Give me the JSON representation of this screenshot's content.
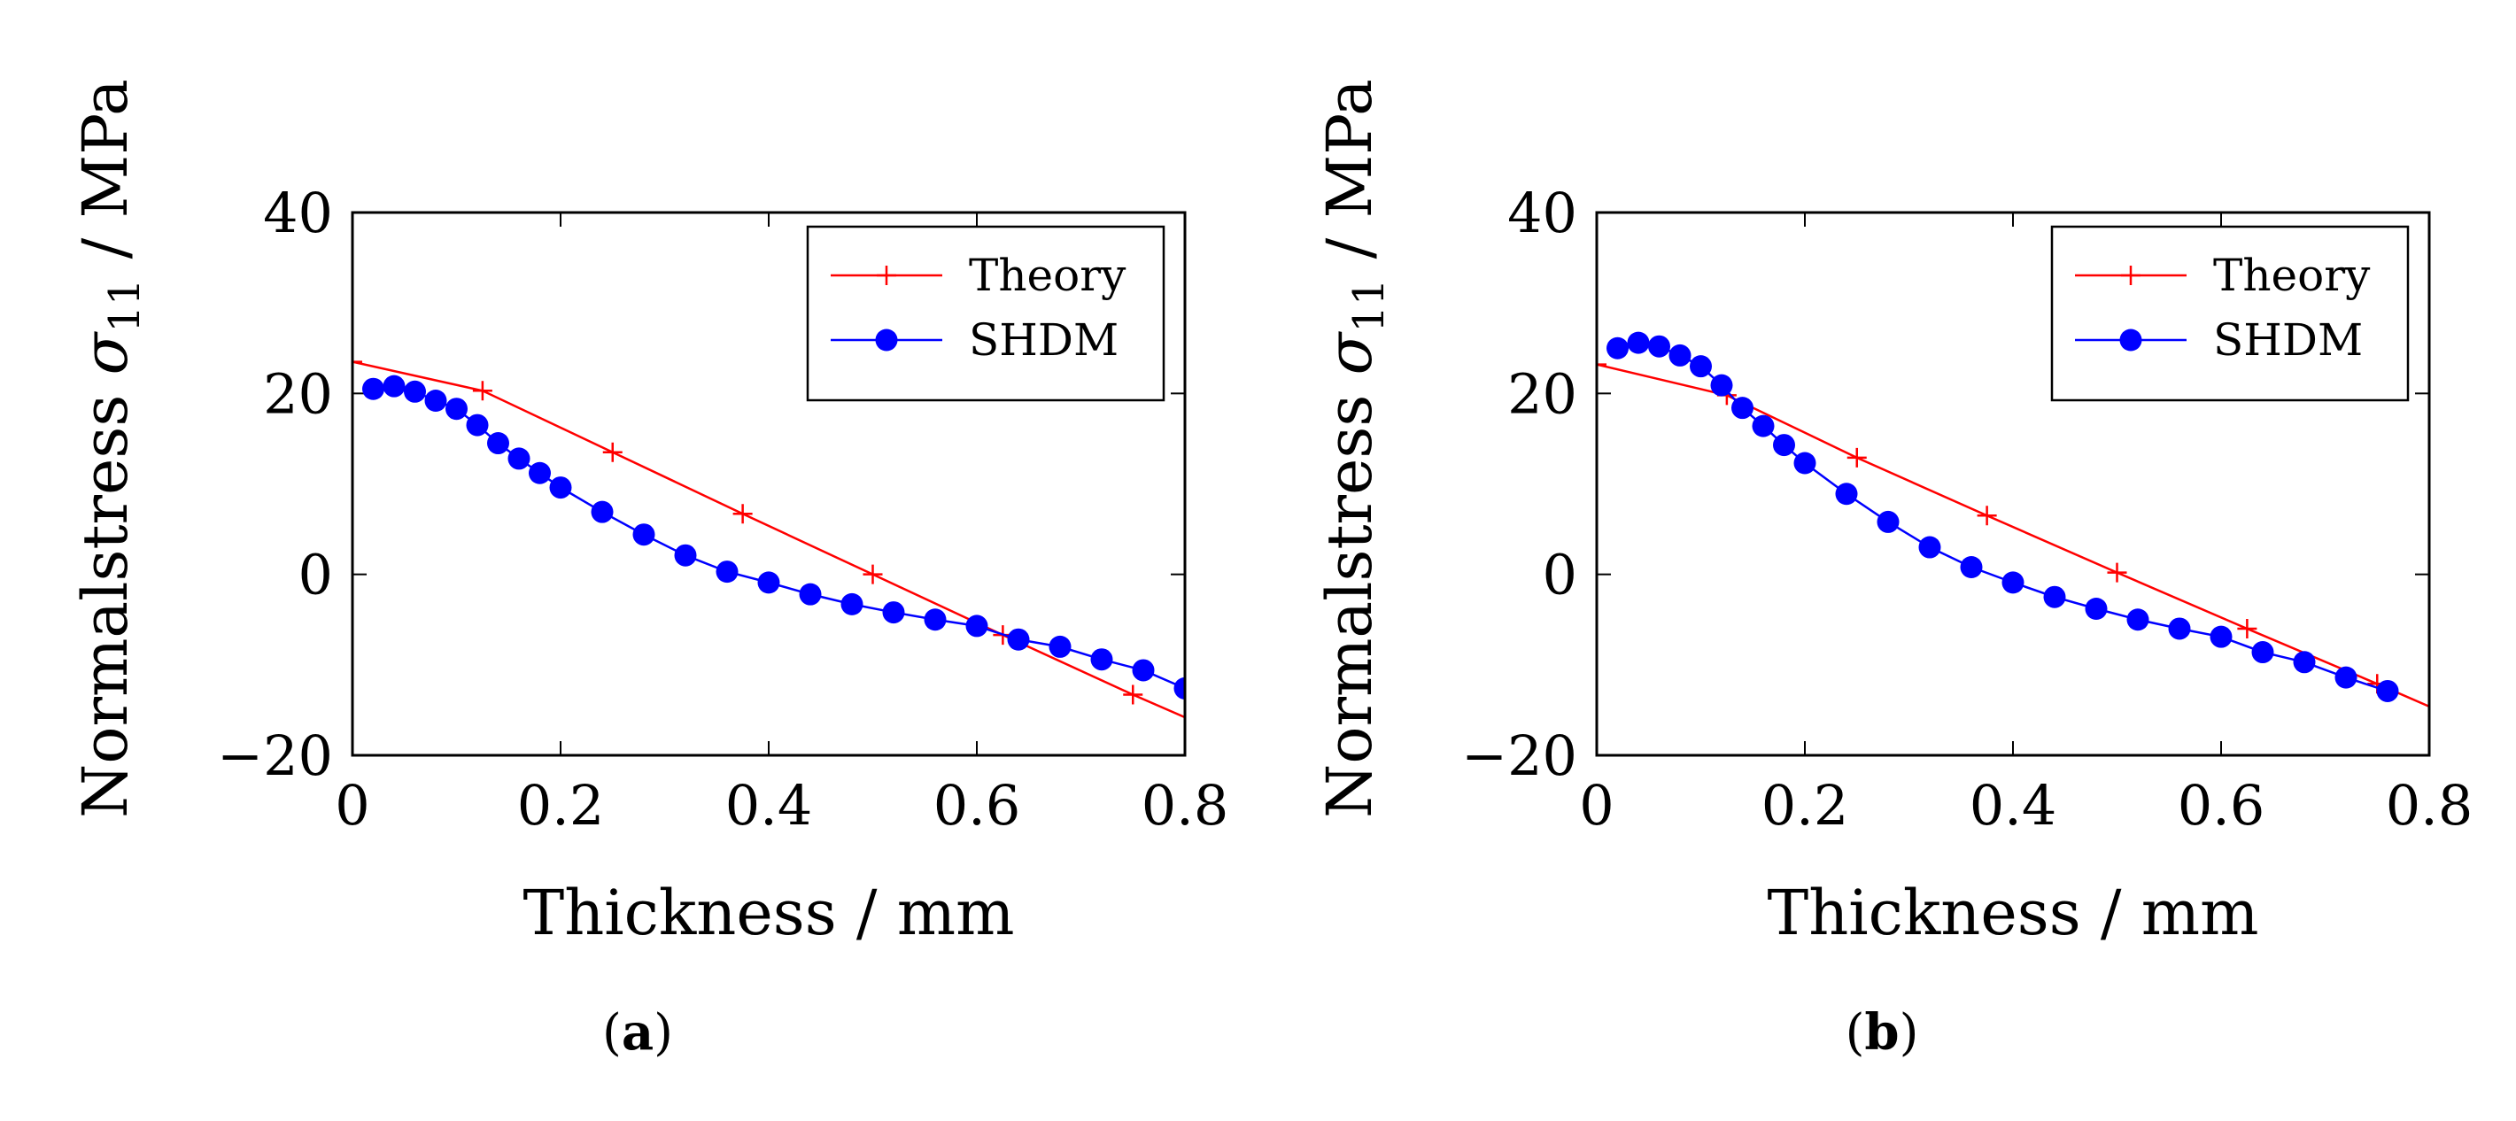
{
  "chart_data": [
    {
      "type": "line",
      "caption": "a",
      "xlabel": "Thickness / mm",
      "ylabel_prefix": "Normalstress",
      "ylabel_symbol": "σ",
      "ylabel_subscript": "11",
      "ylabel_unit": "/ MPa",
      "xlim": [
        0,
        0.8
      ],
      "ylim": [
        -20,
        40
      ],
      "xticks": [
        0,
        0.2,
        0.4,
        0.6,
        0.8
      ],
      "yticks": [
        -20,
        0,
        20,
        40
      ],
      "xtick_labels": [
        "0",
        "0.2",
        "0.4",
        "0.6",
        "0.8"
      ],
      "ytick_labels": [
        "−20",
        "0",
        "20",
        "40"
      ],
      "legend_position": "top-right",
      "series": [
        {
          "name": "Theory",
          "color": "#ff0000",
          "marker": "plus",
          "x": [
            0,
            0.125,
            0.25,
            0.375,
            0.5,
            0.625,
            0.75,
            0.8
          ],
          "y": [
            23.5,
            20.3,
            13.5,
            6.7,
            0,
            -6.7,
            -13.3,
            -15.8
          ],
          "marker_x": [
            0,
            0.125,
            0.25,
            0.375,
            0.5,
            0.625,
            0.75
          ]
        },
        {
          "name": "SHDM",
          "color": "#0000ff",
          "marker": "circle",
          "x": [
            0.02,
            0.04,
            0.06,
            0.08,
            0.1,
            0.12,
            0.14,
            0.16,
            0.18,
            0.2,
            0.24,
            0.28,
            0.32,
            0.36,
            0.4,
            0.44,
            0.48,
            0.52,
            0.56,
            0.6,
            0.64,
            0.68,
            0.72,
            0.76,
            0.8
          ],
          "y": [
            20.5,
            20.8,
            20.2,
            19.2,
            18.3,
            16.5,
            14.5,
            12.8,
            11.2,
            9.6,
            6.9,
            4.4,
            2.1,
            0.3,
            -0.9,
            -2.2,
            -3.3,
            -4.2,
            -5.0,
            -5.7,
            -7.2,
            -8.0,
            -9.4,
            -10.6,
            -12.6
          ]
        }
      ]
    },
    {
      "type": "line",
      "caption": "b",
      "xlabel": "Thickness / mm",
      "ylabel_prefix": "Normalstress",
      "ylabel_symbol": "σ",
      "ylabel_subscript": "11",
      "ylabel_unit": "/ MPa",
      "xlim": [
        0,
        0.8
      ],
      "ylim": [
        -20,
        40
      ],
      "xticks": [
        0,
        0.2,
        0.4,
        0.6,
        0.8
      ],
      "yticks": [
        -20,
        0,
        20,
        40
      ],
      "xtick_labels": [
        "0",
        "0.2",
        "0.4",
        "0.6",
        "0.8"
      ],
      "ytick_labels": [
        "−20",
        "0",
        "20",
        "40"
      ],
      "legend_position": "top-right",
      "series": [
        {
          "name": "Theory",
          "color": "#ff0000",
          "marker": "plus",
          "x": [
            0,
            0.125,
            0.25,
            0.375,
            0.5,
            0.625,
            0.75,
            0.8
          ],
          "y": [
            23.2,
            19.8,
            12.9,
            6.5,
            0.2,
            -6.0,
            -12.1,
            -14.6
          ],
          "marker_x": [
            0,
            0.125,
            0.25,
            0.375,
            0.5,
            0.625,
            0.75
          ]
        },
        {
          "name": "SHDM",
          "color": "#0000ff",
          "marker": "circle",
          "x": [
            0.02,
            0.04,
            0.06,
            0.08,
            0.1,
            0.12,
            0.14,
            0.16,
            0.18,
            0.2,
            0.24,
            0.28,
            0.32,
            0.36,
            0.4,
            0.44,
            0.48,
            0.52,
            0.56,
            0.6,
            0.64,
            0.68,
            0.72,
            0.76
          ],
          "y": [
            25.0,
            25.6,
            25.2,
            24.2,
            23.0,
            20.9,
            18.4,
            16.4,
            14.3,
            12.3,
            8.9,
            5.8,
            3.0,
            0.8,
            -0.9,
            -2.5,
            -3.8,
            -5.0,
            -6.0,
            -6.9,
            -8.6,
            -9.7,
            -11.4,
            -12.9
          ]
        }
      ]
    }
  ]
}
